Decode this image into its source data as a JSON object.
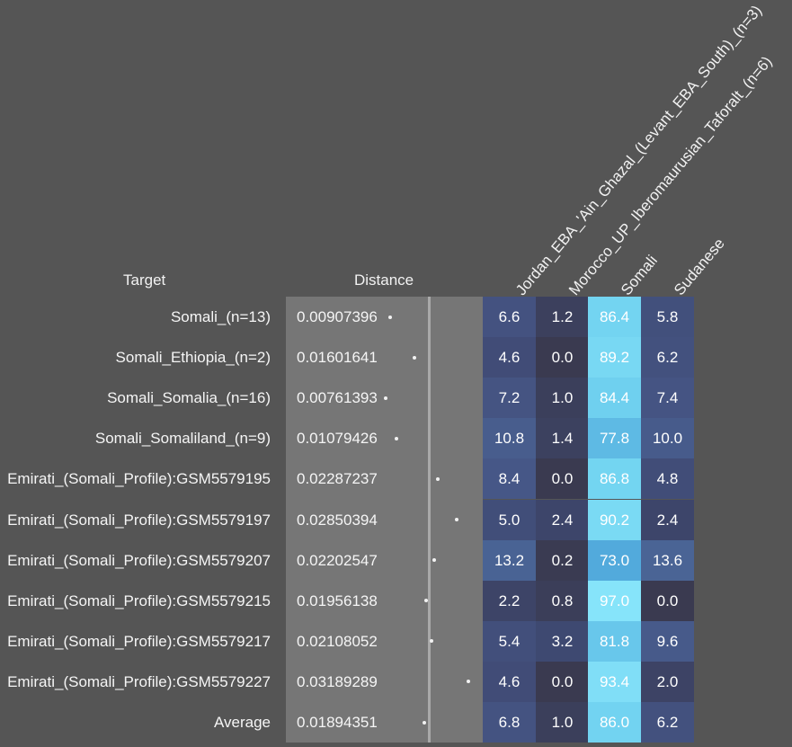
{
  "headers": {
    "target": "Target",
    "distance": "Distance"
  },
  "chart_data": {
    "type": "heatmap",
    "columns": [
      "Jordan_EBA_'Ain_Ghazal_(Levant_EBA_South)_(n=3)",
      "Morocco_UP_Iberomaurusian_Taforalt_(n=6)",
      "Somali",
      "Sudanese"
    ],
    "rows": [
      {
        "target": "Somali_(n=13)",
        "distance": "0.00907396",
        "values": [
          "6.6",
          "1.2",
          "86.4",
          "5.8"
        ]
      },
      {
        "target": "Somali_Ethiopia_(n=2)",
        "distance": "0.01601641",
        "values": [
          "4.6",
          "0.0",
          "89.2",
          "6.2"
        ]
      },
      {
        "target": "Somali_Somalia_(n=16)",
        "distance": "0.00761393",
        "values": [
          "7.2",
          "1.0",
          "84.4",
          "7.4"
        ]
      },
      {
        "target": "Somali_Somaliland_(n=9)",
        "distance": "0.01079426",
        "values": [
          "10.8",
          "1.4",
          "77.8",
          "10.0"
        ]
      },
      {
        "target": "Emirati_(Somali_Profile):GSM5579195",
        "distance": "0.02287237",
        "values": [
          "8.4",
          "0.0",
          "86.8",
          "4.8"
        ]
      },
      {
        "target": "Emirati_(Somali_Profile):GSM5579197",
        "distance": "0.02850394",
        "values": [
          "5.0",
          "2.4",
          "90.2",
          "2.4"
        ]
      },
      {
        "target": "Emirati_(Somali_Profile):GSM5579207",
        "distance": "0.02202547",
        "values": [
          "13.2",
          "0.2",
          "73.0",
          "13.6"
        ]
      },
      {
        "target": "Emirati_(Somali_Profile):GSM5579215",
        "distance": "0.01956138",
        "values": [
          "2.2",
          "0.8",
          "97.0",
          "0.0"
        ]
      },
      {
        "target": "Emirati_(Somali_Profile):GSM5579217",
        "distance": "0.02108052",
        "values": [
          "5.4",
          "3.2",
          "81.8",
          "9.6"
        ]
      },
      {
        "target": "Emirati_(Somali_Profile):GSM5579227",
        "distance": "0.03189289",
        "values": [
          "4.6",
          "0.0",
          "93.4",
          "2.0"
        ]
      },
      {
        "target": "Average",
        "distance": "0.01894351",
        "values": [
          "6.8",
          "1.0",
          "86.0",
          "6.2"
        ]
      }
    ]
  }
}
